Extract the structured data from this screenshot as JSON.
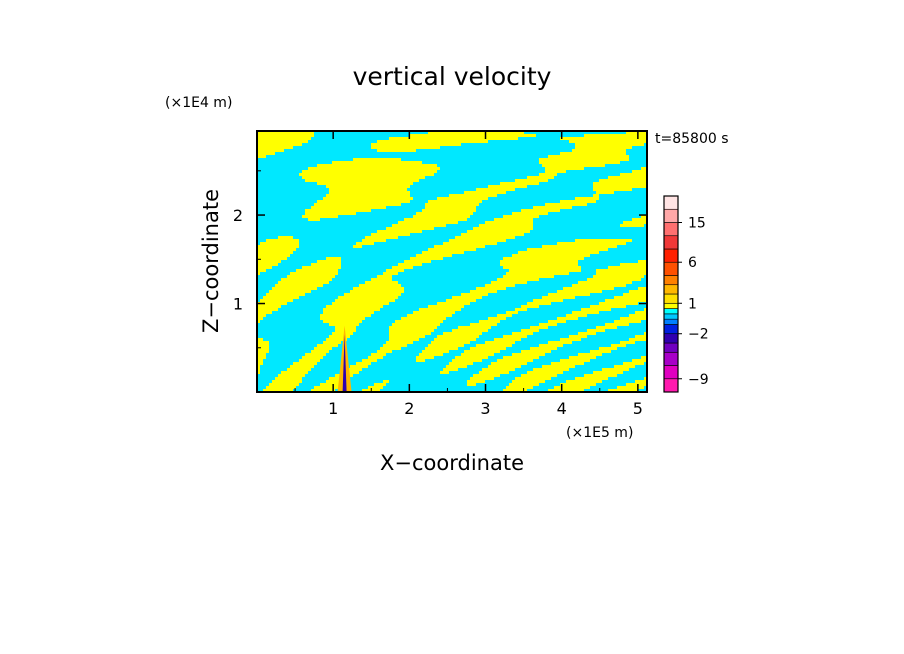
{
  "chart_data": {
    "type": "heatmap",
    "title": "vertical velocity",
    "xlabel": "X−coordinate",
    "ylabel": "Z−coordinate",
    "x_unit": "(×1E5 m)",
    "y_unit": "(×1E4 m)",
    "time_label": "t=85800 s",
    "xlim": [
      0,
      5.12
    ],
    "ylim": [
      0,
      2.95
    ],
    "x_ticks": [
      1,
      2,
      3,
      4,
      5
    ],
    "y_ticks": [
      1,
      2
    ],
    "x_tick_labels": [
      "1",
      "2",
      "3",
      "4",
      "5"
    ],
    "y_tick_labels": [
      "1",
      "2"
    ],
    "field_colors": {
      "positive": "#ffff00",
      "negative": "#00e8ff"
    },
    "colorbar": {
      "range": [
        -12,
        21
      ],
      "levels": [
        -12,
        -9,
        -6,
        -4,
        -3,
        -2,
        -1,
        -0.5,
        0,
        0.5,
        1,
        2,
        3,
        4,
        6,
        9,
        12,
        15,
        18,
        21
      ],
      "colors": [
        "#ff1aae",
        "#e000c0",
        "#a800c8",
        "#7000c0",
        "#3000b0",
        "#0020e0",
        "#0080ff",
        "#00c8ff",
        "#00ffff",
        "#ffff00",
        "#ffe000",
        "#ffb800",
        "#ff8000",
        "#ff5000",
        "#ff2000",
        "#f03838",
        "#ff7070",
        "#ffa8a8",
        "#ffe4e4"
      ],
      "tick_values": [
        -9,
        -2,
        1,
        6,
        15
      ],
      "tick_labels": [
        "−9",
        "−2",
        "1",
        "6",
        "15"
      ]
    }
  }
}
